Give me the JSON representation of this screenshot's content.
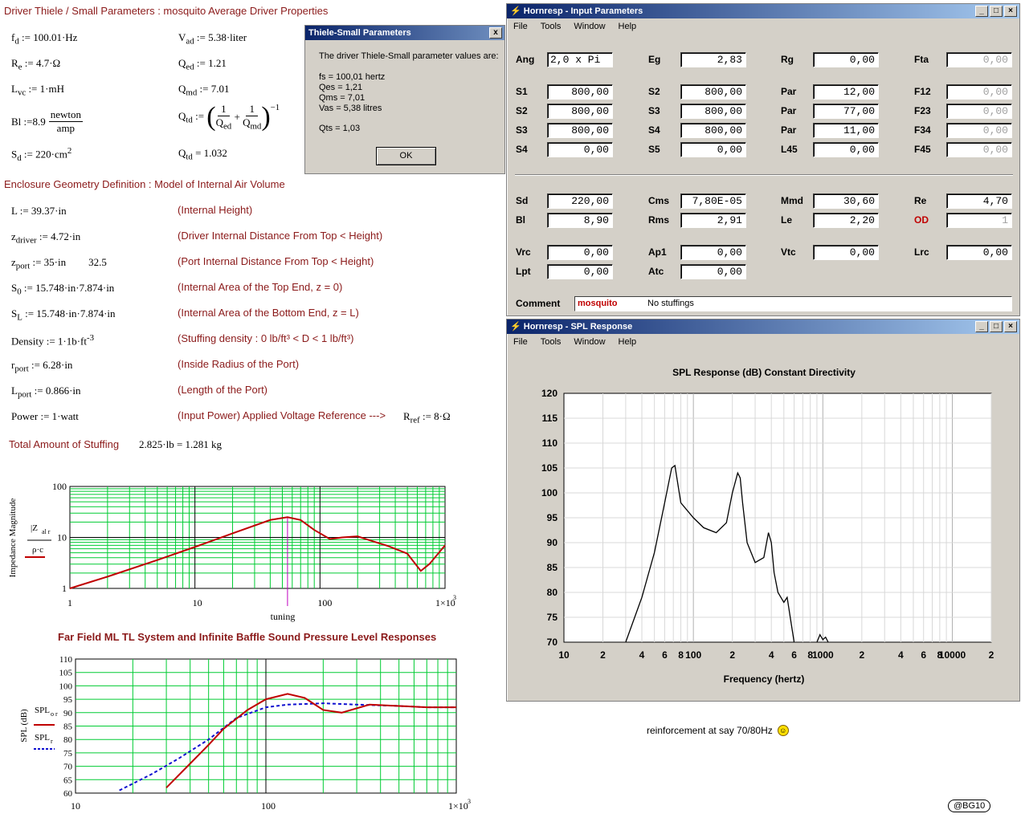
{
  "worksheet": {
    "header1": "Driver Thiele / Small Parameters : mosquito Average Driver Properties",
    "fd": "100.01·Hz",
    "Re": "4.7·Ω",
    "Lvc": "1·mH",
    "Bl_value": "8.9",
    "Bl_num": "newton",
    "Bl_den": "amp",
    "Sd": "220·cm",
    "Sd_exp": "2",
    "Vad": "5.38·liter",
    "Qed": "1.21",
    "Qmd": "7.01",
    "Qtd": "1.032",
    "header2": "Enclosure Geometry Definition : Model of Internal Air Volume",
    "geometry": [
      {
        "lhs": "L",
        "sub": "",
        "rhs": "39.37·in",
        "extra": "",
        "comment": "(Internal Height)"
      },
      {
        "lhs": "z",
        "sub": "driver",
        "rhs": "4.72·in",
        "extra": "",
        "comment": "(Driver Internal Distance From Top < Height)"
      },
      {
        "lhs": "z",
        "sub": "port",
        "rhs": "35·in",
        "extra": "32.5",
        "comment": "(Port Internal Distance From Top < Height)"
      },
      {
        "lhs": "S",
        "sub": "0",
        "rhs": "15.748·in·7.874·in",
        "extra": "",
        "comment": "(Internal Area of the Top End, z = 0)"
      },
      {
        "lhs": "S",
        "sub": "L",
        "rhs": "15.748·in·7.874·in",
        "extra": "",
        "comment": "(Internal Area of the Bottom End, z = L)"
      },
      {
        "lhs": "Density",
        "sub": "",
        "rhs": "1·1b·ft",
        "extra": "",
        "comment": "(Stuffing density : 0 lb/ft³ < D < 1 lb/ft³)"
      },
      {
        "lhs": "r",
        "sub": "port",
        "rhs": "6.28·in",
        "extra": "",
        "comment": "(Inside Radius of the Port)"
      },
      {
        "lhs": "L",
        "sub": "port",
        "rhs": "0.866·in",
        "extra": "",
        "comment": "(Length of the Port)"
      },
      {
        "lhs": "Power",
        "sub": "",
        "rhs": "1·watt",
        "extra": "",
        "comment": "(Input Power)   Applied Voltage Reference --->"
      }
    ],
    "density_exp": "-3",
    "rref_sub": "ref",
    "rref_value": "8·Ω",
    "stuffing_label": "Total Amount of Stuffing",
    "stuffing_value": "2.825·lb = 1.281 kg"
  },
  "chart_data": [
    {
      "type": "line",
      "title": "",
      "xlabel": "tuning",
      "ylabel": "Impedance Magnitude",
      "xscale": "log",
      "yscale": "log",
      "xlim": [
        1,
        1000
      ],
      "ylim": [
        1,
        100
      ],
      "xticks": [
        "1",
        "10",
        "100",
        "1×10"
      ],
      "yticks": [
        "1",
        "10",
        "100"
      ],
      "marker_x": 55,
      "series": [
        {
          "name": "|Z_al r| / ρ·c",
          "color": "#c00000",
          "x": [
            1,
            2,
            5,
            10,
            20,
            40,
            55,
            70,
            90,
            120,
            150,
            200,
            250,
            350,
            500,
            640,
            750,
            1000
          ],
          "y": [
            1,
            1.7,
            3.6,
            6.5,
            12,
            22,
            25,
            22,
            14,
            9.3,
            10,
            10.5,
            8.8,
            6.8,
            4.8,
            2.2,
            3,
            7
          ]
        }
      ]
    },
    {
      "type": "line",
      "title": "Far Field ML TL System and Infinite Baffle Sound Pressure Level Responses",
      "xlabel": "",
      "ylabel": "SPL (dB)",
      "xscale": "log",
      "xlim": [
        10,
        1000
      ],
      "ylim": [
        60,
        110
      ],
      "xticks": [
        "10",
        "100",
        "1×10"
      ],
      "yticks": [
        "60",
        "65",
        "70",
        "75",
        "80",
        "85",
        "90",
        "95",
        "100",
        "105",
        "110"
      ],
      "series": [
        {
          "name": "SPL o r",
          "color": "#c00000",
          "x": [
            30,
            40,
            50,
            60,
            80,
            100,
            130,
            160,
            200,
            250,
            350,
            500,
            700,
            1000
          ],
          "y": [
            62,
            71,
            78,
            84,
            91,
            95,
            97,
            95.5,
            91,
            90,
            93,
            92.5,
            92,
            92
          ]
        },
        {
          "name": "SPL r",
          "color": "#1010d0",
          "x": [
            17,
            25,
            35,
            50,
            70,
            100,
            130,
            200,
            300,
            500,
            700,
            1000
          ],
          "y": [
            61,
            67,
            73,
            80,
            88,
            92,
            93,
            93.5,
            93,
            92.5,
            92,
            92
          ]
        }
      ]
    },
    {
      "type": "line",
      "title": "SPL Response (dB)   Constant Directivity",
      "xlabel": "Frequency (hertz)",
      "ylabel": "",
      "xscale": "log",
      "xlim": [
        10,
        20000
      ],
      "ylim": [
        70,
        120
      ],
      "xticks": [
        "10",
        "2",
        "4",
        "6",
        "8",
        "100",
        "2",
        "4",
        "6",
        "8",
        "1000",
        "2",
        "4",
        "6",
        "8",
        "10000",
        "2"
      ],
      "yticks": [
        "70",
        "75",
        "80",
        "85",
        "90",
        "95",
        "100",
        "105",
        "110",
        "115",
        "120"
      ],
      "series": [
        {
          "name": "SPL",
          "color": "#000000",
          "x": [
            30,
            40,
            50,
            60,
            68,
            72,
            80,
            100,
            120,
            150,
            180,
            200,
            220,
            230,
            240,
            260,
            300,
            350,
            380,
            400,
            420,
            450,
            500,
            530,
            560,
            600
          ],
          "y": [
            70,
            79,
            88,
            98,
            105,
            105.5,
            98,
            95,
            93,
            92,
            94,
            100,
            104,
            103,
            98,
            90,
            86,
            87,
            92,
            90,
            84,
            80,
            78,
            79,
            75,
            70
          ]
        },
        {
          "name": "SPL-tail",
          "color": "#000000",
          "x": [
            900,
            950,
            1000,
            1050,
            1100
          ],
          "y": [
            70,
            71.5,
            70.5,
            71,
            70
          ]
        }
      ]
    }
  ],
  "ts_dialog": {
    "title": "Thiele-Small Parameters",
    "intro": "The driver Thiele-Small parameter values are:",
    "lines": [
      "fs = 100,01 hertz",
      "Qes = 1,21",
      "Qms = 7,01",
      "Vas = 5,38 litres"
    ],
    "qts": "Qts = 1,03",
    "ok": "OK",
    "close": "x"
  },
  "input_window": {
    "title": "Hornresp - Input Parameters",
    "menu": [
      "File",
      "Tools",
      "Window",
      "Help"
    ],
    "fields": [
      {
        "label": "Ang",
        "value": "2,0 x Pi",
        "disabled": false,
        "left": true
      },
      {
        "label": "Eg",
        "value": "2,83",
        "disabled": false
      },
      {
        "label": "Rg",
        "value": "0,00",
        "disabled": false
      },
      {
        "label": "Fta",
        "value": "0,00",
        "disabled": true
      },
      {
        "label": "S1",
        "value": "800,00",
        "disabled": false
      },
      {
        "label": "S2",
        "value": "800,00",
        "disabled": false
      },
      {
        "label": "Par",
        "value": "12,00",
        "disabled": false
      },
      {
        "label": "F12",
        "value": "0,00",
        "disabled": true
      },
      {
        "label": "S2",
        "value": "800,00",
        "disabled": false
      },
      {
        "label": "S3",
        "value": "800,00",
        "disabled": false
      },
      {
        "label": "Par",
        "value": "77,00",
        "disabled": false
      },
      {
        "label": "F23",
        "value": "0,00",
        "disabled": true
      },
      {
        "label": "S3",
        "value": "800,00",
        "disabled": false
      },
      {
        "label": "S4",
        "value": "800,00",
        "disabled": false
      },
      {
        "label": "Par",
        "value": "11,00",
        "disabled": false
      },
      {
        "label": "F34",
        "value": "0,00",
        "disabled": true
      },
      {
        "label": "S4",
        "value": "0,00",
        "disabled": false
      },
      {
        "label": "S5",
        "value": "0,00",
        "disabled": false
      },
      {
        "label": "L45",
        "value": "0,00",
        "disabled": false
      },
      {
        "label": "F45",
        "value": "0,00",
        "disabled": true
      },
      {
        "label": "Sd",
        "value": "220,00",
        "disabled": false
      },
      {
        "label": "Cms",
        "value": "7,80E-05",
        "disabled": false
      },
      {
        "label": "Mmd",
        "value": "30,60",
        "disabled": false
      },
      {
        "label": "Re",
        "value": "4,70",
        "disabled": false
      },
      {
        "label": "Bl",
        "value": "8,90",
        "disabled": false
      },
      {
        "label": "Rms",
        "value": "2,91",
        "disabled": false
      },
      {
        "label": "Le",
        "value": "2,20",
        "disabled": false
      },
      {
        "label": "OD",
        "value": "1",
        "disabled": true,
        "red": true
      },
      {
        "label": "Vrc",
        "value": "0,00",
        "disabled": false
      },
      {
        "label": "Ap1",
        "value": "0,00",
        "disabled": false
      },
      {
        "label": "Vtc",
        "value": "0,00",
        "disabled": false
      },
      {
        "label": "Lrc",
        "value": "0,00",
        "disabled": false
      },
      {
        "label": "Lpt",
        "value": "0,00",
        "disabled": false
      },
      {
        "label": "Atc",
        "value": "0,00",
        "disabled": false
      }
    ],
    "comment_label": "Comment",
    "comment_name": "mosquito",
    "comment_text": "No stuffings"
  },
  "spl_window": {
    "title": "Hornresp - SPL Response",
    "menu": [
      "File",
      "Tools",
      "Window",
      "Help"
    ]
  },
  "caption": "reinforcement at say 70/80Hz",
  "signature": "@BG10",
  "colors": {
    "accent": "#8b1a1a",
    "titlebar": "#0a246a",
    "grid": "#00cc33",
    "red": "#c00000",
    "blue": "#1010d0"
  }
}
